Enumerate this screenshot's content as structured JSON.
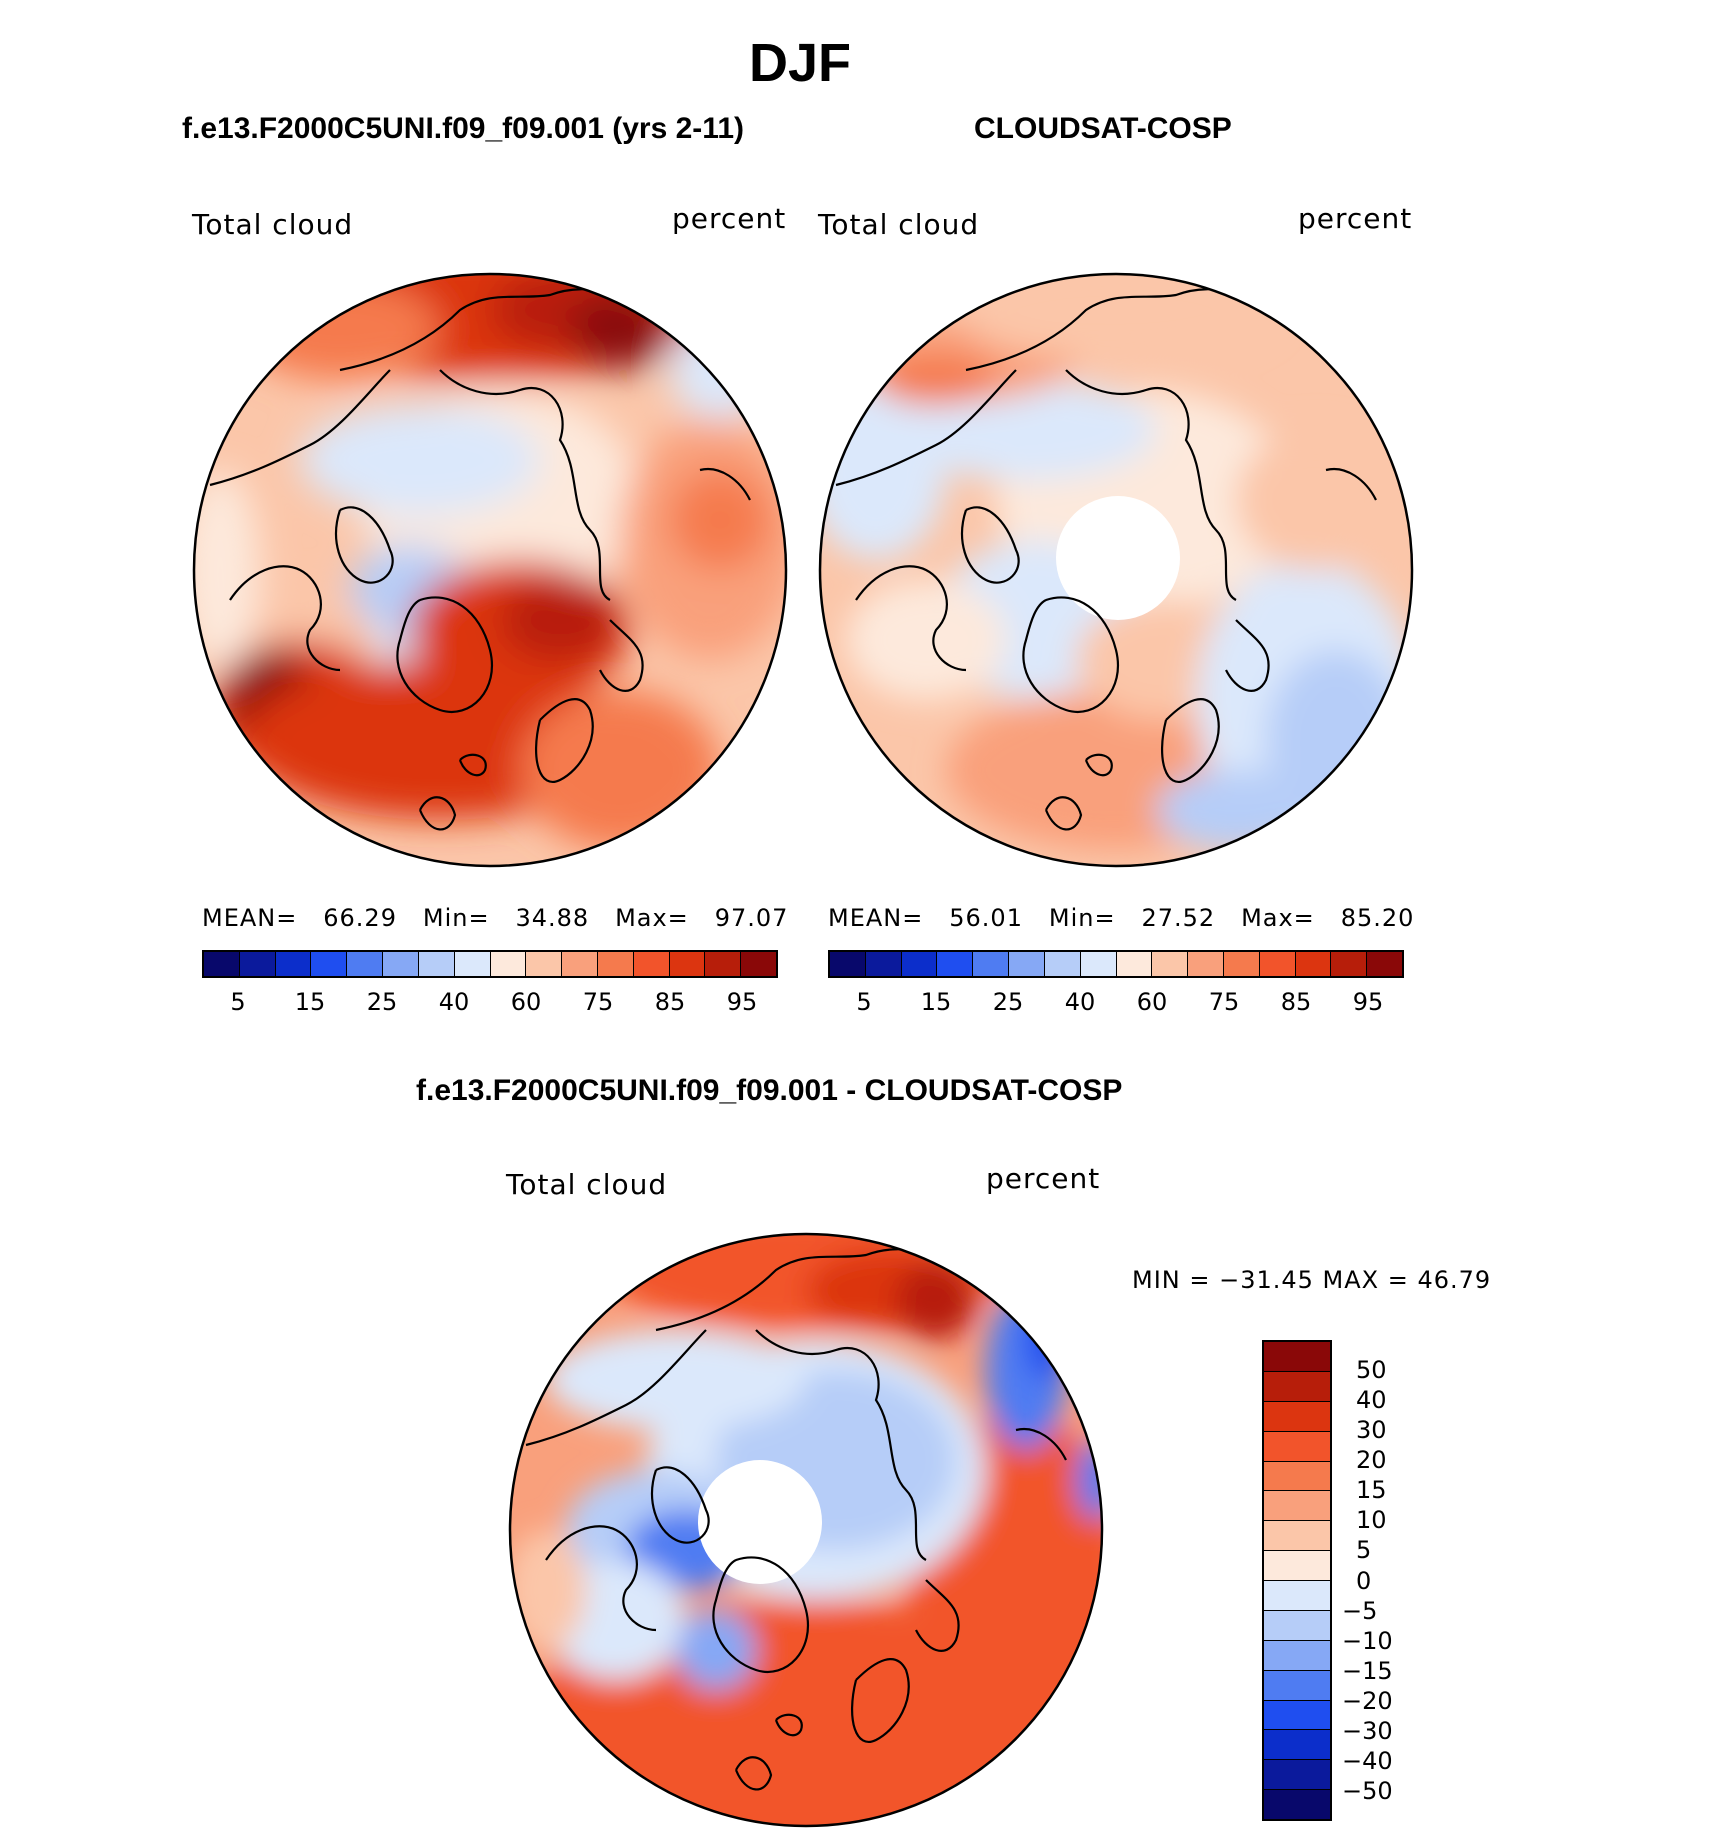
{
  "title": "DJF",
  "panels": [
    {
      "case": "f.e13.F2000C5UNI.f09_f09.001 (yrs 2-11)",
      "variable": "Total cloud",
      "units": "percent",
      "stats": {
        "mean_label": "MEAN=",
        "mean": "66.29",
        "min_label": "Min=",
        "min": "34.88",
        "max_label": "Max=",
        "max": "97.07"
      }
    },
    {
      "case": "CLOUDSAT-COSP",
      "variable": "Total cloud",
      "units": "percent",
      "stats": {
        "mean_label": "MEAN=",
        "mean": "56.01",
        "min_label": "Min=",
        "min": "27.52",
        "max_label": "Max=",
        "max": "85.20"
      }
    }
  ],
  "diff_panel": {
    "title": "f.e13.F2000C5UNI.f09_f09.001 - CLOUDSAT-COSP",
    "variable": "Total cloud",
    "units": "percent",
    "minmax": "MIN = −31.45 MAX =   46.79"
  },
  "colorbar_abs": {
    "colors": [
      "#08086b",
      "#0b1a9c",
      "#0c2ecb",
      "#1f4ef0",
      "#4f7cf2",
      "#86a8f5",
      "#b6cdf8",
      "#dbe8fb",
      "#fde9dc",
      "#fbc6a9",
      "#f9a07c",
      "#f57a4d",
      "#f2542b",
      "#dc3510",
      "#b71e0a",
      "#8a0808"
    ],
    "tick_labels": [
      "5",
      "15",
      "25",
      "40",
      "60",
      "75",
      "85",
      "95"
    ]
  },
  "colorbar_diff": {
    "colors": [
      "#8a0808",
      "#b71e0a",
      "#dc3510",
      "#f2542b",
      "#f57a4d",
      "#f9a07c",
      "#fbc6a9",
      "#fde9dc",
      "#dbe8fb",
      "#b6cdf8",
      "#86a8f5",
      "#4f7cf2",
      "#1f4ef0",
      "#0c2ecb",
      "#0b1a9c",
      "#08086b"
    ],
    "tick_labels": [
      "50",
      "40",
      "30",
      "20",
      "15",
      "10",
      "5",
      "0",
      "−5",
      "−10",
      "−15",
      "−20",
      "−30",
      "−40",
      "−50"
    ]
  },
  "chart_data": [
    {
      "type": "heatmap",
      "projection": "polar-stereographic",
      "hemisphere": "north",
      "title": "f.e13.F2000C5UNI.f09_f09.001 (yrs 2-11)",
      "variable": "Total cloud",
      "units": "percent",
      "mean": 66.29,
      "min": 34.88,
      "max": 97.07,
      "levels": [
        5,
        10,
        15,
        20,
        25,
        30,
        40,
        50,
        60,
        70,
        75,
        80,
        85,
        90,
        95
      ]
    },
    {
      "type": "heatmap",
      "projection": "polar-stereographic",
      "hemisphere": "north",
      "title": "CLOUDSAT-COSP",
      "variable": "Total cloud",
      "units": "percent",
      "mean": 56.01,
      "min": 27.52,
      "max": 85.2,
      "levels": [
        5,
        10,
        15,
        20,
        25,
        30,
        40,
        50,
        60,
        70,
        75,
        80,
        85,
        90,
        95
      ]
    },
    {
      "type": "heatmap",
      "projection": "polar-stereographic",
      "hemisphere": "north",
      "title": "f.e13.F2000C5UNI.f09_f09.001 - CLOUDSAT-COSP",
      "variable": "Total cloud",
      "units": "percent",
      "min": -31.45,
      "max": 46.79,
      "levels": [
        -50,
        -40,
        -30,
        -20,
        -15,
        -10,
        -5,
        0,
        5,
        10,
        15,
        20,
        30,
        40,
        50
      ]
    }
  ]
}
